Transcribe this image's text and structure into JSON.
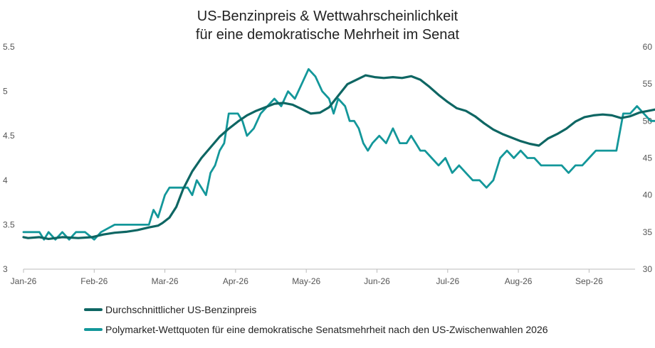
{
  "chart_data": {
    "type": "line",
    "title": "US-Benzinpreis & Wettwahrscheinlichkeit",
    "subtitle": "für eine demokratische Mehrheit im Senat",
    "x_ticks": [
      "Jan-26",
      "Feb-26",
      "Mar-26",
      "Apr-26",
      "May-26",
      "Jun-26",
      "Jul-26",
      "Aug-26",
      "Sep-26"
    ],
    "y_left": {
      "range": [
        3,
        5.5
      ],
      "ticks": [
        "3",
        "3.5",
        "4",
        "4.5",
        "5",
        "5.5"
      ]
    },
    "y_right": {
      "range": [
        30,
        60
      ],
      "ticks": [
        "30",
        "35",
        "40",
        "45",
        "50",
        "55",
        "60"
      ]
    },
    "grid": false,
    "legend_position": "bottom",
    "series": [
      {
        "name": "Durchschnittlicher US-Benzinpreis",
        "axis": "left",
        "color": "#0e6663",
        "points": [
          [
            "2026-01-01",
            3.36
          ],
          [
            "2026-01-03",
            3.35
          ],
          [
            "2026-01-08",
            3.36
          ],
          [
            "2026-01-12",
            3.34
          ],
          [
            "2026-01-18",
            3.36
          ],
          [
            "2026-01-25",
            3.35
          ],
          [
            "2026-01-31",
            3.36
          ],
          [
            "2026-02-05",
            3.39
          ],
          [
            "2026-02-10",
            3.41
          ],
          [
            "2026-02-15",
            3.42
          ],
          [
            "2026-02-20",
            3.44
          ],
          [
            "2026-02-25",
            3.47
          ],
          [
            "2026-03-01",
            3.49
          ],
          [
            "2026-03-03",
            3.52
          ],
          [
            "2026-03-06",
            3.58
          ],
          [
            "2026-03-09",
            3.7
          ],
          [
            "2026-03-12",
            3.9
          ],
          [
            "2026-03-16",
            4.1
          ],
          [
            "2026-03-20",
            4.25
          ],
          [
            "2026-03-24",
            4.37
          ],
          [
            "2026-03-28",
            4.49
          ],
          [
            "2026-04-01",
            4.58
          ],
          [
            "2026-04-05",
            4.66
          ],
          [
            "2026-04-09",
            4.73
          ],
          [
            "2026-04-13",
            4.78
          ],
          [
            "2026-04-17",
            4.82
          ],
          [
            "2026-04-21",
            4.86
          ],
          [
            "2026-04-25",
            4.87
          ],
          [
            "2026-04-29",
            4.85
          ],
          [
            "2026-05-03",
            4.8
          ],
          [
            "2026-05-07",
            4.75
          ],
          [
            "2026-05-11",
            4.76
          ],
          [
            "2026-05-15",
            4.82
          ],
          [
            "2026-05-19",
            4.95
          ],
          [
            "2026-05-23",
            5.08
          ],
          [
            "2026-05-27",
            5.13
          ],
          [
            "2026-05-31",
            5.18
          ],
          [
            "2026-06-04",
            5.16
          ],
          [
            "2026-06-08",
            5.15
          ],
          [
            "2026-06-12",
            5.16
          ],
          [
            "2026-06-16",
            5.15
          ],
          [
            "2026-06-20",
            5.17
          ],
          [
            "2026-06-24",
            5.13
          ],
          [
            "2026-06-28",
            5.05
          ],
          [
            "2026-07-02",
            4.96
          ],
          [
            "2026-07-06",
            4.88
          ],
          [
            "2026-07-10",
            4.81
          ],
          [
            "2026-07-14",
            4.78
          ],
          [
            "2026-07-18",
            4.72
          ],
          [
            "2026-07-22",
            4.64
          ],
          [
            "2026-07-26",
            4.57
          ],
          [
            "2026-07-30",
            4.52
          ],
          [
            "2026-08-03",
            4.48
          ],
          [
            "2026-08-07",
            4.44
          ],
          [
            "2026-08-11",
            4.41
          ],
          [
            "2026-08-15",
            4.39
          ],
          [
            "2026-08-19",
            4.47
          ],
          [
            "2026-08-23",
            4.52
          ],
          [
            "2026-08-27",
            4.58
          ],
          [
            "2026-08-31",
            4.66
          ],
          [
            "2026-09-04",
            4.71
          ],
          [
            "2026-09-08",
            4.73
          ],
          [
            "2026-09-12",
            4.74
          ],
          [
            "2026-09-16",
            4.73
          ],
          [
            "2026-09-20",
            4.7
          ],
          [
            "2026-09-24",
            4.72
          ],
          [
            "2026-09-28",
            4.76
          ],
          [
            "2026-10-02",
            4.78
          ],
          [
            "2026-10-06",
            4.8
          ],
          [
            "2026-10-10",
            4.81
          ],
          [
            "2026-10-14",
            4.82
          ],
          [
            "2026-10-18",
            4.84
          ],
          [
            "2026-10-22",
            4.88
          ],
          [
            "2026-10-26",
            4.93
          ],
          [
            "2026-10-30",
            5.05
          ],
          [
            "2026-11-04",
            5.05
          ]
        ]
      },
      {
        "name": "Polymarket-Wettquoten für eine demokratische Senatsmehrheit nach den US-Zwischenwahlen 2026",
        "axis": "right",
        "color": "#13979a",
        "points": [
          [
            "2026-01-01",
            35
          ],
          [
            "2026-01-08",
            35
          ],
          [
            "2026-01-10",
            34
          ],
          [
            "2026-01-12",
            35
          ],
          [
            "2026-01-15",
            34
          ],
          [
            "2026-01-18",
            35
          ],
          [
            "2026-01-21",
            34
          ],
          [
            "2026-01-24",
            35
          ],
          [
            "2026-01-28",
            35
          ],
          [
            "2026-02-01",
            34
          ],
          [
            "2026-02-04",
            35
          ],
          [
            "2026-02-10",
            36
          ],
          [
            "2026-02-15",
            36
          ],
          [
            "2026-02-20",
            36
          ],
          [
            "2026-02-25",
            36
          ],
          [
            "2026-02-27",
            38
          ],
          [
            "2026-03-01",
            37
          ],
          [
            "2026-03-04",
            40
          ],
          [
            "2026-03-06",
            41
          ],
          [
            "2026-03-10",
            41
          ],
          [
            "2026-03-14",
            41
          ],
          [
            "2026-03-16",
            40
          ],
          [
            "2026-03-18",
            42
          ],
          [
            "2026-03-20",
            41
          ],
          [
            "2026-03-22",
            40
          ],
          [
            "2026-03-24",
            43
          ],
          [
            "2026-03-26",
            44
          ],
          [
            "2026-03-28",
            46
          ],
          [
            "2026-03-30",
            47
          ],
          [
            "2026-04-01",
            51
          ],
          [
            "2026-04-05",
            51
          ],
          [
            "2026-04-07",
            50
          ],
          [
            "2026-04-09",
            48
          ],
          [
            "2026-04-12",
            49
          ],
          [
            "2026-04-15",
            51
          ],
          [
            "2026-04-18",
            52
          ],
          [
            "2026-04-21",
            53
          ],
          [
            "2026-04-24",
            52
          ],
          [
            "2026-04-27",
            54
          ],
          [
            "2026-04-30",
            53
          ],
          [
            "2026-05-03",
            55
          ],
          [
            "2026-05-06",
            57
          ],
          [
            "2026-05-09",
            56
          ],
          [
            "2026-05-12",
            54
          ],
          [
            "2026-05-15",
            53
          ],
          [
            "2026-05-17",
            51
          ],
          [
            "2026-05-19",
            53
          ],
          [
            "2026-05-22",
            52
          ],
          [
            "2026-05-24",
            50
          ],
          [
            "2026-05-26",
            50
          ],
          [
            "2026-05-28",
            49
          ],
          [
            "2026-05-30",
            47
          ],
          [
            "2026-06-01",
            46
          ],
          [
            "2026-06-03",
            47
          ],
          [
            "2026-06-06",
            48
          ],
          [
            "2026-06-09",
            47
          ],
          [
            "2026-06-12",
            49
          ],
          [
            "2026-06-15",
            47
          ],
          [
            "2026-06-18",
            47
          ],
          [
            "2026-06-20",
            48
          ],
          [
            "2026-06-22",
            47
          ],
          [
            "2026-06-24",
            46
          ],
          [
            "2026-06-26",
            46
          ],
          [
            "2026-06-29",
            45
          ],
          [
            "2026-07-02",
            44
          ],
          [
            "2026-07-05",
            45
          ],
          [
            "2026-07-08",
            43
          ],
          [
            "2026-07-11",
            44
          ],
          [
            "2026-07-14",
            43
          ],
          [
            "2026-07-17",
            42
          ],
          [
            "2026-07-20",
            42
          ],
          [
            "2026-07-23",
            41
          ],
          [
            "2026-07-26",
            42
          ],
          [
            "2026-07-29",
            45
          ],
          [
            "2026-08-01",
            46
          ],
          [
            "2026-08-04",
            45
          ],
          [
            "2026-08-07",
            46
          ],
          [
            "2026-08-10",
            45
          ],
          [
            "2026-08-13",
            45
          ],
          [
            "2026-08-16",
            44
          ],
          [
            "2026-08-19",
            44
          ],
          [
            "2026-08-22",
            44
          ],
          [
            "2026-08-25",
            44
          ],
          [
            "2026-08-28",
            43
          ],
          [
            "2026-08-31",
            44
          ],
          [
            "2026-09-03",
            44
          ],
          [
            "2026-09-06",
            45
          ],
          [
            "2026-09-09",
            46
          ],
          [
            "2026-09-12",
            46
          ],
          [
            "2026-09-15",
            46
          ],
          [
            "2026-09-18",
            46
          ],
          [
            "2026-09-21",
            51
          ],
          [
            "2026-09-24",
            51
          ],
          [
            "2026-09-27",
            52
          ],
          [
            "2026-09-30",
            51
          ],
          [
            "2026-10-03",
            50
          ],
          [
            "2026-10-06",
            50
          ],
          [
            "2026-10-09",
            49
          ],
          [
            "2026-10-12",
            48
          ],
          [
            "2026-10-15",
            50
          ],
          [
            "2026-10-18",
            50
          ],
          [
            "2026-10-21",
            51
          ],
          [
            "2026-10-24",
            52
          ],
          [
            "2026-10-27",
            51
          ],
          [
            "2026-10-30",
            52
          ],
          [
            "2026-11-02",
            53
          ]
        ]
      }
    ]
  }
}
